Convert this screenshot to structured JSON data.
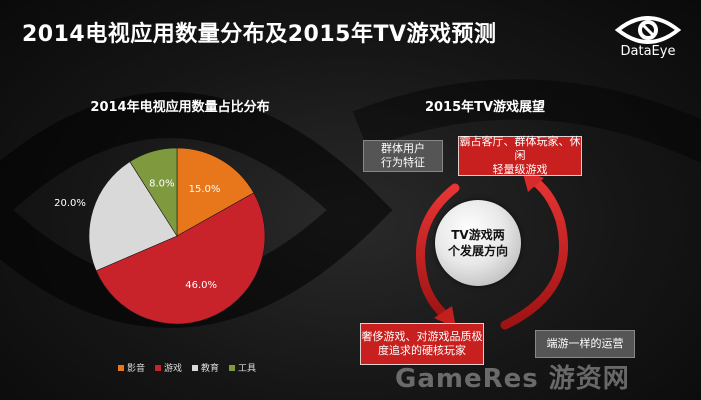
{
  "title": "2014电视应用数量分布及2015年TV游戏预测",
  "logo": {
    "text": "DataEye",
    "icon": "eye-logo-icon"
  },
  "chart_data": {
    "type": "pie",
    "title": "2014年电视应用数量占比分布",
    "categories": [
      "影音",
      "游戏",
      "教育",
      "工具"
    ],
    "values": [
      15.0,
      46.0,
      20.0,
      8.0
    ],
    "labels": [
      "15.0%",
      "46.0%",
      "20.0%",
      "8.0%"
    ],
    "colors": [
      "#e8761a",
      "#c8222a",
      "#d9d9d9",
      "#7f9a3e"
    ],
    "label_colors": [
      "#ffffff",
      "#ffffff",
      "#ffffff",
      "#ffffff"
    ],
    "legend_position": "bottom"
  },
  "outlook": {
    "title": "2015年TV游戏展望",
    "center": [
      "TV游戏两",
      "个发展方向"
    ],
    "top_gray": [
      "群体用户",
      "行为特征"
    ],
    "top_red": [
      "霸占客厅、群体玩家、休闲",
      "轻量级游戏"
    ],
    "bottom_red": [
      "奢侈游戏、对游戏品质极",
      "度追求的硬核玩家"
    ],
    "bottom_gray": [
      "端游一样的运营"
    ]
  },
  "watermark": "GameRes 游资网"
}
